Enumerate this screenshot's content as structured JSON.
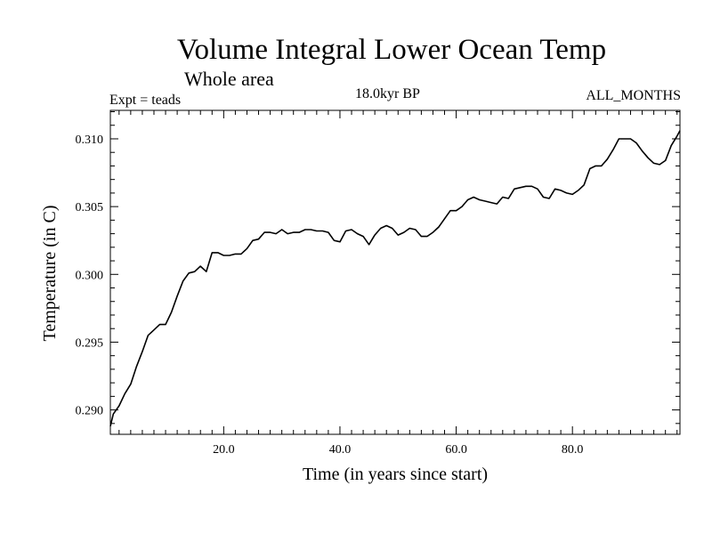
{
  "chart_data": {
    "type": "line",
    "title": "Volume Integral Lower Ocean Temp",
    "subtitle": "Whole area",
    "annotations": {
      "expt": "Expt = teads",
      "period": "18.0kyr BP",
      "months": "ALL_MONTHS"
    },
    "xlabel": "Time (in years since start)",
    "ylabel": "Temperature (in C)",
    "xlim": [
      0.5,
      98.5
    ],
    "ylim": [
      0.2882,
      0.3121
    ],
    "xticks": [
      20,
      40,
      60,
      80
    ],
    "xtick_labels": [
      "20.0",
      "40.0",
      "60.0",
      "80.0"
    ],
    "yticks": [
      0.29,
      0.295,
      0.3,
      0.305,
      0.31
    ],
    "ytick_labels": [
      "0.290",
      "0.295",
      "0.300",
      "0.305",
      "0.310"
    ],
    "grid": false,
    "series": [
      {
        "name": "Volume Integral Lower Ocean Temp",
        "x": [
          0.5,
          1,
          2,
          3,
          4,
          5,
          6,
          7,
          8,
          9,
          10,
          11,
          12,
          13,
          14,
          15,
          16,
          17,
          18,
          19,
          20,
          21,
          22,
          23,
          24,
          25,
          26,
          27,
          28,
          29,
          30,
          31,
          32,
          33,
          34,
          35,
          36,
          37,
          38,
          39,
          40,
          41,
          42,
          43,
          44,
          45,
          46,
          47,
          48,
          49,
          50,
          51,
          52,
          53,
          54,
          55,
          56,
          57,
          58,
          59,
          60,
          61,
          62,
          63,
          64,
          65,
          66,
          67,
          68,
          69,
          70,
          71,
          72,
          73,
          74,
          75,
          76,
          77,
          78,
          79,
          80,
          81,
          82,
          83,
          84,
          85,
          86,
          87,
          88,
          89,
          90,
          91,
          92,
          93,
          94,
          95,
          96,
          97,
          98,
          98.5
        ],
        "values": [
          0.2888,
          0.2897,
          0.2903,
          0.2912,
          0.2919,
          0.2932,
          0.2943,
          0.2955,
          0.2959,
          0.2963,
          0.2963,
          0.2972,
          0.2984,
          0.2995,
          0.3001,
          0.3002,
          0.3006,
          0.3002,
          0.3016,
          0.3016,
          0.3014,
          0.3014,
          0.3015,
          0.3015,
          0.3019,
          0.3025,
          0.3026,
          0.3031,
          0.3031,
          0.303,
          0.3033,
          0.303,
          0.3031,
          0.3031,
          0.3033,
          0.3033,
          0.3032,
          0.3032,
          0.3031,
          0.3025,
          0.3024,
          0.3032,
          0.3033,
          0.303,
          0.3028,
          0.3022,
          0.3029,
          0.3034,
          0.3036,
          0.3034,
          0.3029,
          0.3031,
          0.3034,
          0.3033,
          0.3028,
          0.3028,
          0.3031,
          0.3035,
          0.3041,
          0.3047,
          0.3047,
          0.305,
          0.3055,
          0.3057,
          0.3055,
          0.3054,
          0.3053,
          0.3052,
          0.3057,
          0.3056,
          0.3063,
          0.3064,
          0.3065,
          0.3065,
          0.3063,
          0.3057,
          0.3056,
          0.3063,
          0.3062,
          0.306,
          0.3059,
          0.3062,
          0.3066,
          0.3078,
          0.308,
          0.308,
          0.3085,
          0.3092,
          0.31,
          0.31,
          0.31,
          0.3097,
          0.3091,
          0.3086,
          0.3082,
          0.3081,
          0.3084,
          0.3095,
          0.3102,
          0.3106
        ]
      }
    ]
  }
}
